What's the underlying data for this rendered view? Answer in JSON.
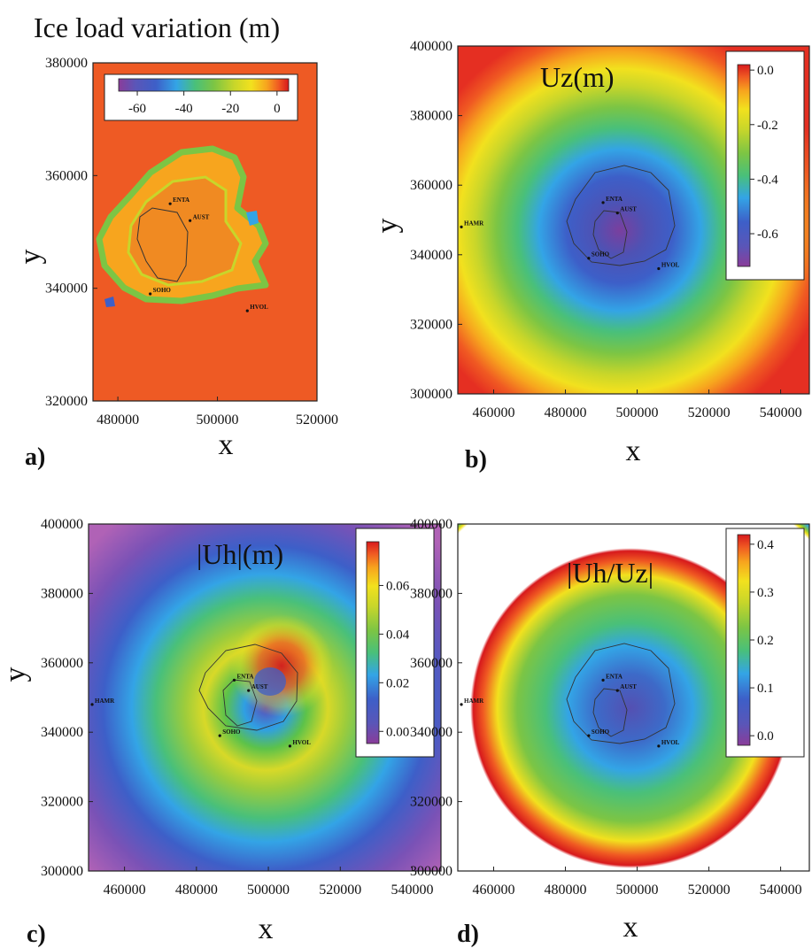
{
  "chart_data": [
    {
      "panel": "a",
      "type": "heatmap",
      "panel_label": "a)",
      "title": "Ice load variation (m)",
      "xlabel": "x",
      "ylabel": "y",
      "xlim": [
        475000,
        520000
      ],
      "ylim": [
        320000,
        380000
      ],
      "xticks": [
        480000,
        500000,
        520000
      ],
      "yticks": [
        320000,
        340000,
        360000,
        380000
      ],
      "xtick_labels": [
        "480000",
        "500000",
        "520000"
      ],
      "ytick_labels": [
        "320000",
        "340000",
        "360000",
        "380000"
      ],
      "colorbar": {
        "orientation": "horizontal",
        "range": [
          -68,
          5
        ],
        "ticks": [
          -60,
          -40,
          -20,
          0
        ],
        "tick_labels": [
          "-60",
          "-40",
          "-20",
          "0"
        ]
      },
      "background_value": 0,
      "stations": [
        {
          "name": "ENTA",
          "x": 490500,
          "y": 355000
        },
        {
          "name": "AUST",
          "x": 494500,
          "y": 352000
        },
        {
          "name": "SOHO",
          "x": 486500,
          "y": 339000
        },
        {
          "name": "HVOL",
          "x": 506000,
          "y": 336000
        }
      ]
    },
    {
      "panel": "b",
      "type": "heatmap",
      "panel_label": "b)",
      "title": "Uz(m)",
      "xlabel": "x",
      "ylabel": "y",
      "xlim": [
        450000,
        548000
      ],
      "ylim": [
        300000,
        400000
      ],
      "xticks": [
        460000,
        480000,
        500000,
        520000,
        540000
      ],
      "yticks": [
        300000,
        320000,
        340000,
        360000,
        380000,
        400000
      ],
      "xtick_labels": [
        "460000",
        "480000",
        "500000",
        "520000",
        "540000"
      ],
      "ytick_labels": [
        "300000",
        "320000",
        "340000",
        "360000",
        "380000",
        "400000"
      ],
      "colorbar": {
        "orientation": "vertical",
        "range": [
          -0.72,
          0.02
        ],
        "ticks": [
          0.0,
          -0.2,
          -0.4,
          -0.6
        ],
        "tick_labels": [
          "0.0",
          "-0.2",
          "-0.4",
          "-0.6"
        ]
      },
      "center_min": -0.7,
      "stations": [
        {
          "name": "HAMR",
          "x": 451000,
          "y": 348000
        },
        {
          "name": "ENTA",
          "x": 490500,
          "y": 355000
        },
        {
          "name": "AUST",
          "x": 494500,
          "y": 352000
        },
        {
          "name": "SOHO",
          "x": 486500,
          "y": 339000
        },
        {
          "name": "HVOL",
          "x": 506000,
          "y": 336000
        }
      ]
    },
    {
      "panel": "c",
      "type": "heatmap",
      "panel_label": "c)",
      "title": "|Uh|(m)",
      "xlabel": "x",
      "ylabel": "y",
      "xlim": [
        450000,
        548000
      ],
      "ylim": [
        300000,
        400000
      ],
      "xticks": [
        460000,
        480000,
        500000,
        520000,
        540000
      ],
      "yticks": [
        300000,
        320000,
        340000,
        360000,
        380000,
        400000
      ],
      "xtick_labels": [
        "460000",
        "480000",
        "500000",
        "520000",
        "540000"
      ],
      "ytick_labels": [
        "300000",
        "320000",
        "340000",
        "360000",
        "380000",
        "400000"
      ],
      "colorbar": {
        "orientation": "vertical",
        "range": [
          -0.005,
          0.078
        ],
        "ticks": [
          0.06,
          0.04,
          0.02,
          0.0
        ],
        "tick_labels": [
          "0.06",
          "0.04",
          "0.02",
          "0.00"
        ]
      },
      "peak_value": 0.075,
      "stations": [
        {
          "name": "HAMR",
          "x": 451000,
          "y": 348000
        },
        {
          "name": "ENTA",
          "x": 490500,
          "y": 355000
        },
        {
          "name": "AUST",
          "x": 494500,
          "y": 352000
        },
        {
          "name": "SOHO",
          "x": 486500,
          "y": 339000
        },
        {
          "name": "HVOL",
          "x": 506000,
          "y": 336000
        }
      ]
    },
    {
      "panel": "d",
      "type": "heatmap",
      "panel_label": "d)",
      "title": "|Uh/Uz|",
      "xlabel": "x",
      "ylabel": "y",
      "xlim": [
        450000,
        548000
      ],
      "ylim": [
        300000,
        400000
      ],
      "xticks": [
        460000,
        480000,
        500000,
        520000,
        540000
      ],
      "yticks": [
        300000,
        320000,
        340000,
        360000,
        380000,
        400000
      ],
      "xtick_labels": [
        "460000",
        "480000",
        "500000",
        "520000",
        "540000"
      ],
      "ytick_labels": [
        "300000",
        "320000",
        "340000",
        "360000",
        "380000",
        "400000"
      ],
      "colorbar": {
        "orientation": "vertical",
        "range": [
          -0.02,
          0.42
        ],
        "ticks": [
          0.4,
          0.3,
          0.2,
          0.1,
          0.0
        ],
        "tick_labels": [
          "0.4",
          "0.3",
          "0.2",
          "0.1",
          "0.0"
        ]
      },
      "note": "white region = values above colorbar maximum",
      "stations": [
        {
          "name": "HAMR",
          "x": 451000,
          "y": 348000
        },
        {
          "name": "ENTA",
          "x": 490500,
          "y": 355000
        },
        {
          "name": "AUST",
          "x": 494500,
          "y": 352000
        },
        {
          "name": "SOHO",
          "x": 486500,
          "y": 339000
        },
        {
          "name": "HVOL",
          "x": 506000,
          "y": 336000
        }
      ]
    }
  ],
  "colormap": [
    "#8a3c9a",
    "#5a56b8",
    "#3d5fc8",
    "#33a4e6",
    "#49c07a",
    "#7cc544",
    "#c8d62a",
    "#f2e11e",
    "#f7a51e",
    "#f05a22",
    "#d7191c"
  ],
  "ice_color": "#ee5a24"
}
